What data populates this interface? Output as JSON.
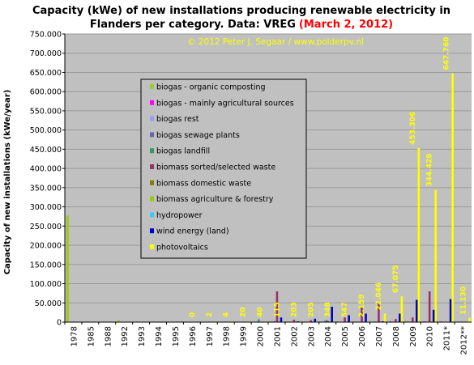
{
  "chart_data": {
    "type": "bar",
    "title": "Capacity (kWe) of new installations producing renewable electricity in Flanders per category. Data: VREG",
    "title_line1": "Capacity (kWe) of new installations producing renewable electricity in",
    "title_line2": "Flanders per category. Data: VREG",
    "title_date": "(March 2, 2012)",
    "copyright": "© 2012 Peter J. Segaar / www.polderpv.nl",
    "ylabel": "Capacity of new installations (kWe/year)",
    "xlabel": "",
    "ylim": [
      0,
      750000
    ],
    "yticks": [
      "0",
      "50.000",
      "100.000",
      "150.000",
      "200.000",
      "250.000",
      "300.000",
      "350.000",
      "400.000",
      "450.000",
      "500.000",
      "550.000",
      "600.000",
      "650.000",
      "700.000",
      "750.000"
    ],
    "categories": [
      "1978",
      "1985",
      "1988",
      "1992",
      "1993",
      "1994",
      "1995",
      "1996",
      "1997",
      "1998",
      "1999",
      "2000",
      "2001",
      "2002",
      "2003",
      "2004",
      "2005",
      "2006",
      "2007",
      "2008",
      "2009",
      "2010",
      "2011*",
      "2012**"
    ],
    "legend_position": "center-left",
    "series": [
      {
        "name": "biogas - organic composting",
        "color": "#99cc33",
        "values": [
          0,
          0,
          0,
          0,
          0,
          0,
          0,
          0,
          0,
          0,
          0,
          0,
          0,
          0,
          0,
          0,
          0,
          0,
          0,
          0,
          3000,
          0,
          0,
          0
        ]
      },
      {
        "name": "biogas - mainly agricultural sources",
        "color": "#ff00ff",
        "values": [
          0,
          0,
          0,
          0,
          0,
          0,
          0,
          0,
          0,
          0,
          0,
          0,
          0,
          0,
          0,
          0,
          0,
          0,
          0,
          2000,
          1500,
          2000,
          1000,
          0
        ]
      },
      {
        "name": "biogas rest",
        "color": "#9999ff",
        "values": [
          0,
          0,
          0,
          0,
          0,
          0,
          0,
          0,
          0,
          0,
          0,
          0,
          0,
          0,
          0,
          0,
          0,
          0,
          0,
          0,
          0,
          2000,
          0,
          0
        ]
      },
      {
        "name": "biogas sewage plants",
        "color": "#6666aa",
        "values": [
          0,
          0,
          0,
          0,
          0,
          0,
          0,
          0,
          0,
          0,
          0,
          0,
          2500,
          0,
          0,
          3000,
          0,
          0,
          0,
          0,
          0,
          0,
          0,
          0
        ]
      },
      {
        "name": "biogas landfill",
        "color": "#339966",
        "values": [
          0,
          0,
          0,
          0,
          0,
          0,
          0,
          0,
          0,
          0,
          0,
          7000,
          0,
          0,
          0,
          5000,
          0,
          0,
          0,
          0,
          0,
          0,
          0,
          0
        ]
      },
      {
        "name": "biomass sorted/selected waste",
        "color": "#993366",
        "values": [
          0,
          0,
          0,
          0,
          0,
          0,
          0,
          0,
          0,
          0,
          0,
          0,
          80000,
          6000,
          5000,
          3000,
          12000,
          40000,
          48000,
          8000,
          12000,
          80000,
          0,
          0
        ]
      },
      {
        "name": "biomass domestic waste",
        "color": "#808000",
        "values": [
          0,
          0,
          0,
          0,
          0,
          0,
          0,
          0,
          0,
          0,
          0,
          0,
          0,
          0,
          0,
          0,
          0,
          0,
          0,
          0,
          0,
          0,
          0,
          0
        ]
      },
      {
        "name": "biomass agriculture & forestry",
        "color": "#99cc00",
        "values": [
          278000,
          0,
          0,
          5000,
          0,
          0,
          0,
          0,
          0,
          0,
          0,
          0,
          2000,
          0,
          0,
          0,
          0,
          0,
          0,
          0,
          2000,
          0,
          0,
          0
        ]
      },
      {
        "name": "hydropower",
        "color": "#33ccff",
        "values": [
          0,
          0,
          0,
          0,
          0,
          0,
          0,
          0,
          0,
          0,
          0,
          0,
          0,
          0,
          0,
          0,
          0,
          0,
          0,
          0,
          0,
          0,
          0,
          0
        ]
      },
      {
        "name": "wind energy (land)",
        "color": "#0000cc",
        "values": [
          0,
          0,
          0,
          0,
          0,
          0,
          0,
          0,
          0,
          0,
          0,
          0,
          12000,
          2000,
          9000,
          40000,
          18000,
          22000,
          2000,
          22000,
          58000,
          32000,
          60000,
          0
        ]
      },
      {
        "name": "photovoltaics",
        "color": "#ffff00",
        "values": [
          0,
          0,
          0,
          0,
          0,
          0,
          0,
          0,
          2,
          4,
          20,
          40,
          115,
          203,
          205,
          348,
          547,
          2159,
          22046,
          67075,
          453306,
          344428,
          647760,
          11130
        ]
      }
    ],
    "data_labels": [
      {
        "category": "1996",
        "text": "0"
      },
      {
        "category": "1997",
        "text": "2"
      },
      {
        "category": "1998",
        "text": "4"
      },
      {
        "category": "1999",
        "text": "20"
      },
      {
        "category": "2000",
        "text": "40"
      },
      {
        "category": "2001",
        "text": "115"
      },
      {
        "category": "2002",
        "text": "203"
      },
      {
        "category": "2003",
        "text": "205"
      },
      {
        "category": "2004",
        "text": "348"
      },
      {
        "category": "2005",
        "text": "547"
      },
      {
        "category": "2006",
        "text": "2.159"
      },
      {
        "category": "2007",
        "text": "22.046"
      },
      {
        "category": "2008",
        "text": "67.075"
      },
      {
        "category": "2009",
        "text": "453.306"
      },
      {
        "category": "2010",
        "text": "344.428"
      },
      {
        "category": "2011*",
        "text": "647.760"
      },
      {
        "category": "2012**",
        "text": "11.130"
      }
    ],
    "colors": {
      "plot_background": "#c0c0c0",
      "legend_background": "#c0c0c0"
    }
  }
}
